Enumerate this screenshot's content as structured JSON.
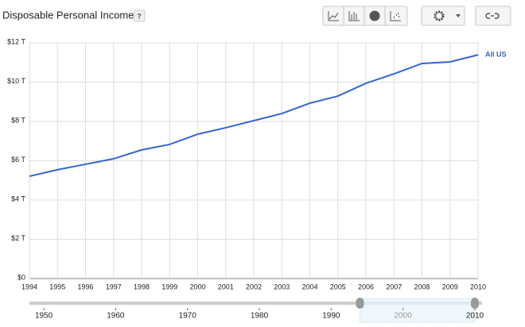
{
  "chart_data": {
    "type": "line",
    "title": "Disposable Personal Income",
    "help": "?",
    "x": [
      1994,
      1995,
      1996,
      1997,
      1998,
      1999,
      2000,
      2001,
      2002,
      2003,
      2004,
      2005,
      2006,
      2007,
      2008,
      2009,
      2010
    ],
    "series": [
      {
        "name": "All US",
        "color": "#3366cc",
        "values": [
          5.21,
          5.54,
          5.82,
          6.1,
          6.55,
          6.83,
          7.35,
          7.68,
          8.04,
          8.4,
          8.93,
          9.29,
          9.94,
          10.42,
          10.95,
          11.03,
          11.39
        ]
      }
    ],
    "xlim": [
      1994,
      2010
    ],
    "xticks": [
      1994,
      1995,
      1996,
      1997,
      1998,
      1999,
      2000,
      2001,
      2002,
      2003,
      2004,
      2005,
      2006,
      2007,
      2008,
      2009,
      2010
    ],
    "ylim": [
      0,
      12
    ],
    "yticks": [
      {
        "value": 0,
        "label": "$0"
      },
      {
        "value": 2,
        "label": "$2 T"
      },
      {
        "value": 4,
        "label": "$4 T"
      },
      {
        "value": 6,
        "label": "$6 T"
      },
      {
        "value": 8,
        "label": "$8 T"
      },
      {
        "value": 10,
        "label": "$10 T"
      },
      {
        "value": 12,
        "label": "$12 T"
      }
    ],
    "grid": true
  },
  "timeline": {
    "xlim": [
      1948,
      2011
    ],
    "ticks": [
      1950,
      1960,
      1970,
      1980,
      1990,
      2000,
      2010
    ],
    "selection": [
      1994,
      2010
    ]
  }
}
